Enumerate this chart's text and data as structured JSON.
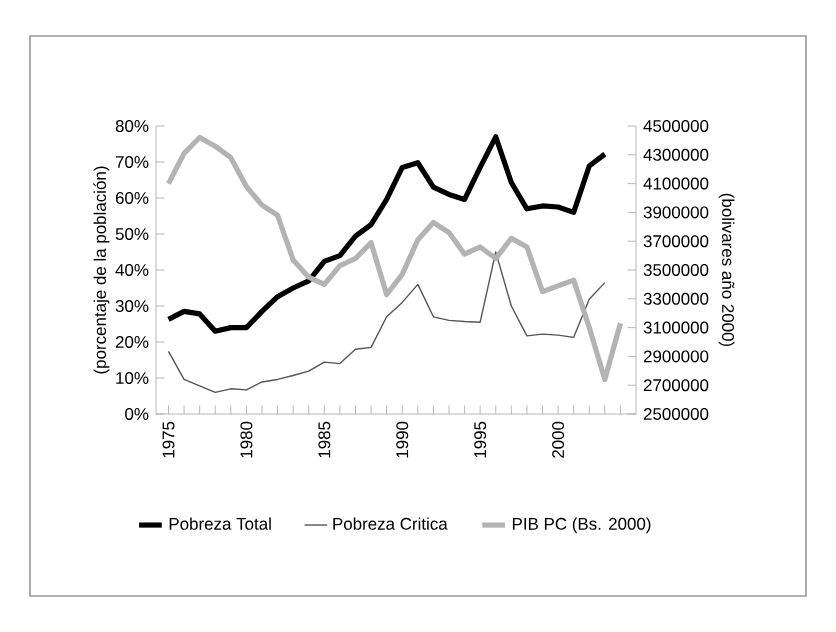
{
  "chart_data": {
    "type": "line",
    "ylabel": "(porcentaje de la población)",
    "y2label": "(bolivares año 2000)",
    "x": [
      1975,
      1976,
      1977,
      1978,
      1979,
      1980,
      1981,
      1982,
      1983,
      1984,
      1985,
      1986,
      1987,
      1988,
      1989,
      1990,
      1991,
      1992,
      1993,
      1994,
      1995,
      1996,
      1997,
      1998,
      1999,
      2000,
      2001,
      2002,
      2003,
      2004
    ],
    "series": [
      {
        "name": "Pobreza Total",
        "color": "#000000",
        "values": [
          26.3,
          28.5,
          27.8,
          23,
          24,
          24,
          28.5,
          32.6,
          35,
          37,
          42.4,
          44,
          49.4,
          52.6,
          59.6,
          68.5,
          69.8,
          63,
          61,
          59.6,
          68.5,
          77,
          64.3,
          57,
          57.8,
          57.5,
          56,
          68.9,
          72.2,
          null
        ]
      },
      {
        "name": "Pobreza Critica",
        "color": "#555555",
        "values": [
          17.4,
          9.6,
          7.8,
          6,
          7,
          6.7,
          8.9,
          9.6,
          10.7,
          11.9,
          14.4,
          14,
          18,
          18.5,
          27,
          31,
          36,
          27,
          26,
          25.7,
          25.5,
          45,
          30,
          21.7,
          22.2,
          21.9,
          21.3,
          31.9,
          36.5,
          null
        ]
      },
      {
        "name": "PIB PC (Bs. 2000)",
        "color": "#b3b3b3",
        "axis": "y2",
        "values": [
          4100000,
          4310000,
          4420000,
          4360000,
          4280000,
          4080000,
          3950000,
          3880000,
          3570000,
          3450000,
          3400000,
          3530000,
          3580000,
          3690000,
          3330000,
          3470000,
          3710000,
          3830000,
          3760000,
          3610000,
          3660000,
          3580000,
          3720000,
          3660000,
          3350000,
          3390000,
          3430000,
          3100000,
          2740000,
          3130000
        ]
      }
    ],
    "xlim": [
      1974.2,
      2005
    ],
    "xticks": [
      1975,
      {
        "value": 1976,
        "label": null
      },
      {
        "value": 1977,
        "label": null
      },
      {
        "value": 1978,
        "label": null
      },
      {
        "value": 1979,
        "label": null
      },
      1980,
      {
        "value": 1981,
        "label": null
      },
      {
        "value": 1982,
        "label": null
      },
      {
        "value": 1983,
        "label": null
      },
      {
        "value": 1984,
        "label": null
      },
      1985,
      {
        "value": 1986,
        "label": null
      },
      {
        "value": 1987,
        "label": null
      },
      {
        "value": 1988,
        "label": null
      },
      {
        "value": 1989,
        "label": null
      },
      1990,
      {
        "value": 1991,
        "label": null
      },
      {
        "value": 1992,
        "label": null
      },
      {
        "value": 1993,
        "label": null
      },
      {
        "value": 1994,
        "label": null
      },
      1995,
      {
        "value": 1996,
        "label": null
      },
      {
        "value": 1997,
        "label": null
      },
      {
        "value": 1998,
        "label": null
      },
      {
        "value": 1999,
        "label": null
      },
      2000,
      {
        "value": 2001,
        "label": null
      },
      {
        "value": 2002,
        "label": null
      },
      {
        "value": 2003,
        "label": null
      },
      {
        "value": 2004,
        "label": null
      }
    ],
    "ylim": [
      0,
      80
    ],
    "yticks": [
      {
        "value": 0,
        "label": "0%"
      },
      {
        "value": 10,
        "label": "10%"
      },
      {
        "value": 20,
        "label": "20%"
      },
      {
        "value": 30,
        "label": "30%"
      },
      {
        "value": 40,
        "label": "40%"
      },
      {
        "value": 50,
        "label": "50%"
      },
      {
        "value": 60,
        "label": "60%"
      },
      {
        "value": 70,
        "label": "70%"
      },
      {
        "value": 80,
        "label": "80%"
      }
    ],
    "y2lim": [
      2500000,
      4500000
    ],
    "y2ticks": [
      2500000,
      2700000,
      2900000,
      3100000,
      3300000,
      3500000,
      3700000,
      3900000,
      4100000,
      4300000,
      4500000
    ],
    "legend": "bottom",
    "grid": false,
    "marker": "none",
    "line_style": "solid"
  }
}
